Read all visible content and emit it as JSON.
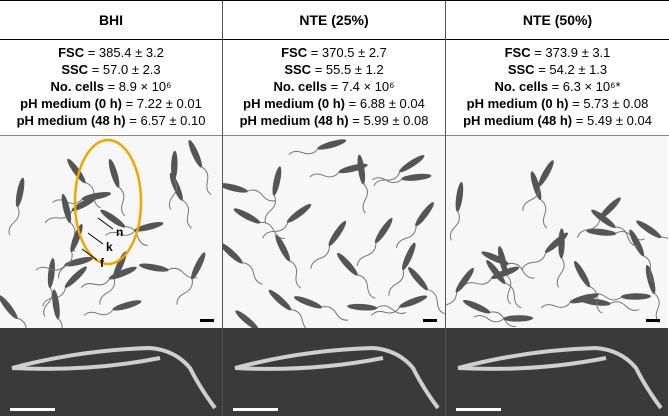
{
  "panels": [
    {
      "title": "BHI",
      "stats": [
        {
          "label": "FSC",
          "value": "= 385.4 ± 3.2"
        },
        {
          "label": "SSC",
          "value": "= 57.0 ± 2.3"
        },
        {
          "label": "No. cells",
          "value": "= 8.9 × 10⁶"
        },
        {
          "label": "pH medium (0 h)",
          "value": "= 7.22 ± 0.01"
        },
        {
          "label": "pH medium (48 h)",
          "value": "= 6.57 ± 0.10"
        }
      ],
      "annotations": [
        "n",
        "k",
        "f"
      ]
    },
    {
      "title": "NTE (25%)",
      "stats": [
        {
          "label": "FSC",
          "value": "= 370.5 ± 2.7"
        },
        {
          "label": "SSC",
          "value": "= 55.5 ± 1.2"
        },
        {
          "label": "No. cells",
          "value": "= 7.4 × 10⁶"
        },
        {
          "label": "pH medium (0 h)",
          "value": "= 6.88 ± 0.04"
        },
        {
          "label": "pH medium (48 h)",
          "value": "= 5.99 ± 0.08"
        }
      ]
    },
    {
      "title": "NTE (50%)",
      "stats": [
        {
          "label": "FSC",
          "value": "= 373.9 ± 3.1"
        },
        {
          "label": "SSC",
          "value": "= 54.2 ± 1.3"
        },
        {
          "label": "No. cells",
          "value": "= 6.3 × 10⁶*"
        },
        {
          "label": "pH medium (0 h)",
          "value": "= 5.73 ± 0.08"
        },
        {
          "label": "pH medium (48 h)",
          "value": "= 5.49 ± 0.04"
        }
      ]
    }
  ]
}
